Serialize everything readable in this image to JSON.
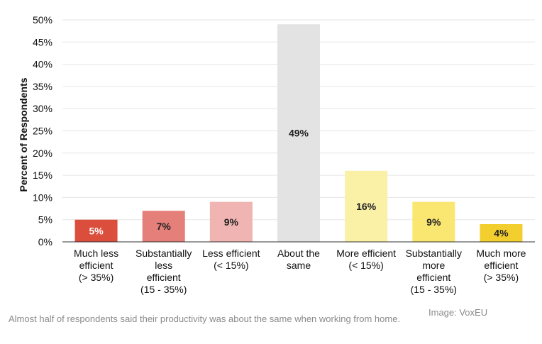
{
  "chart_data": {
    "type": "bar",
    "title": "",
    "xlabel": "",
    "ylabel": "Percent of Respondents",
    "ylim": [
      0,
      50
    ],
    "yticks": [
      "0%",
      "5%",
      "10%",
      "15%",
      "20%",
      "25%",
      "30%",
      "35%",
      "40%",
      "45%",
      "50%"
    ],
    "grid": true,
    "categories": [
      [
        "Much less",
        "efficient",
        "(> 35%)"
      ],
      [
        "Substantially",
        "less",
        "efficient",
        "(15 - 35%)"
      ],
      [
        "Less efficient",
        "(< 15%)"
      ],
      [
        "About the",
        "same"
      ],
      [
        "More efficient",
        "(< 15%)"
      ],
      [
        "Substantially",
        "more",
        "efficient",
        "(15 - 35%)"
      ],
      [
        "Much more",
        "efficient",
        "(> 35%)"
      ]
    ],
    "values": [
      5,
      7,
      9,
      49,
      16,
      9,
      4
    ],
    "value_labels": [
      "5%",
      "7%",
      "9%",
      "49%",
      "16%",
      "9%",
      "4%"
    ],
    "colors": [
      "#dc4e3c",
      "#e57f79",
      "#f0b4b2",
      "#e3e3e3",
      "#faf0a6",
      "#fae772",
      "#f2cf2f"
    ],
    "label_colors": [
      "#ffffff",
      "#222222",
      "#222222",
      "#222222",
      "#222222",
      "#222222",
      "#222222"
    ]
  },
  "caption": "Almost half of respondents said their productivity was about the same when working from home.",
  "credit": "Image: VoxEU"
}
